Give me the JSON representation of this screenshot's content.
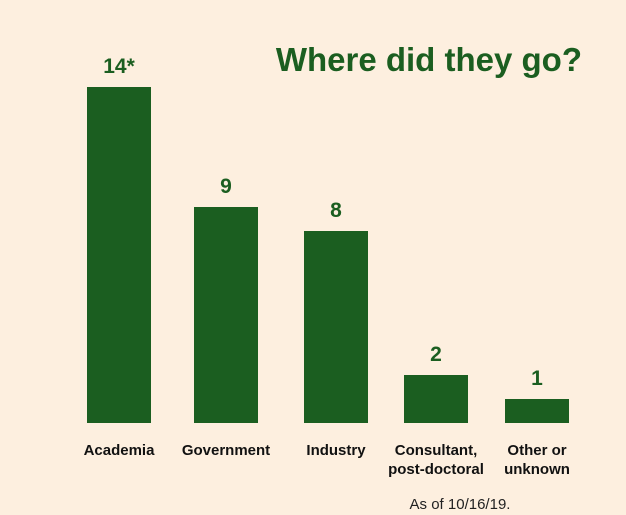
{
  "chart_data": {
    "type": "bar",
    "title": "Where did they go?",
    "categories": [
      [
        "Academia"
      ],
      [
        "Government"
      ],
      [
        "Industry"
      ],
      [
        "Consultant,",
        "post-doctoral"
      ],
      [
        "Other or",
        "unknown"
      ]
    ],
    "values": [
      14,
      9,
      8,
      2,
      1
    ],
    "value_labels": [
      "14*",
      "9",
      "8",
      "2",
      "1"
    ],
    "ylim": [
      0,
      14
    ],
    "grid": false,
    "legend": "none",
    "footnote": "As of 10/16/19."
  },
  "colors": {
    "bar": "#1b5e20",
    "title": "#1b5e20",
    "value_label": "#1b5e20",
    "background": "#fdefdf"
  }
}
